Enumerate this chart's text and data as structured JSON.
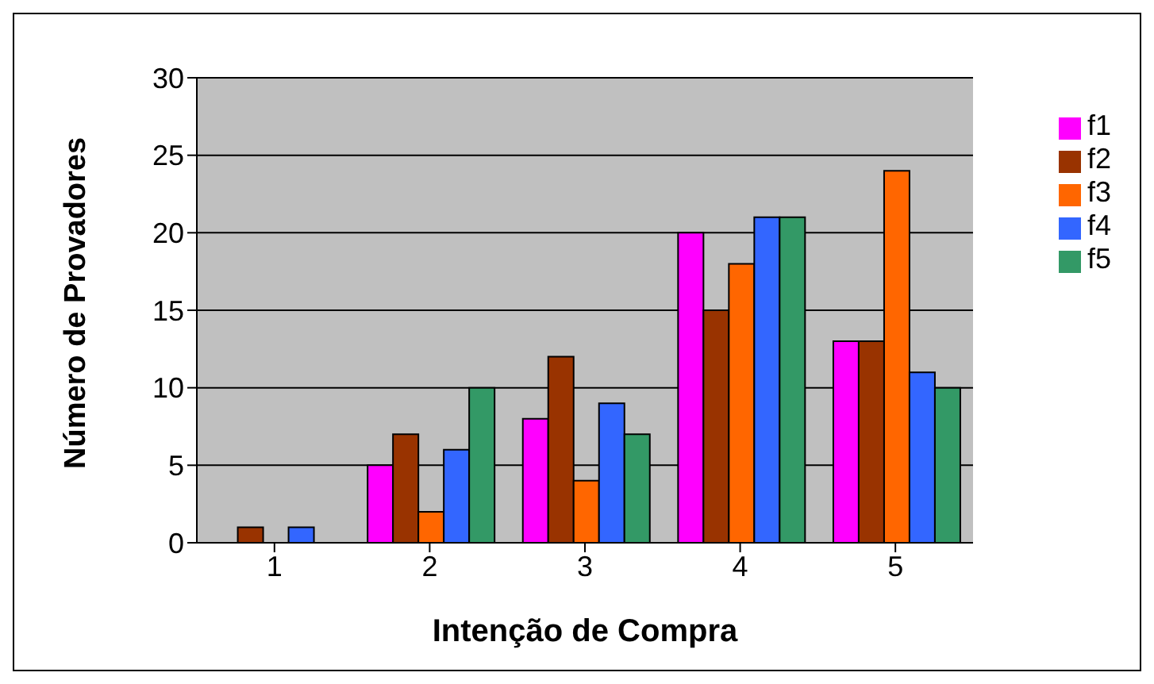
{
  "chart_data": {
    "type": "bar",
    "xlabel": "Intenção de Compra",
    "ylabel": "Número de Provadores",
    "categories": [
      "1",
      "2",
      "3",
      "4",
      "5"
    ],
    "series": [
      {
        "name": "f1",
        "color": "#ff00ff",
        "values": [
          0,
          5,
          8,
          20,
          13
        ]
      },
      {
        "name": "f2",
        "color": "#993300",
        "values": [
          1,
          7,
          12,
          15,
          13
        ]
      },
      {
        "name": "f3",
        "color": "#ff6600",
        "values": [
          0,
          2,
          4,
          18,
          24
        ]
      },
      {
        "name": "f4",
        "color": "#3366ff",
        "values": [
          1,
          6,
          9,
          21,
          11
        ]
      },
      {
        "name": "f5",
        "color": "#339966",
        "values": [
          0,
          10,
          7,
          21,
          10
        ]
      }
    ],
    "ylim": [
      0,
      30
    ],
    "yticks": [
      0,
      5,
      10,
      15,
      20,
      25,
      30
    ],
    "grid": "y",
    "legend": "right"
  }
}
